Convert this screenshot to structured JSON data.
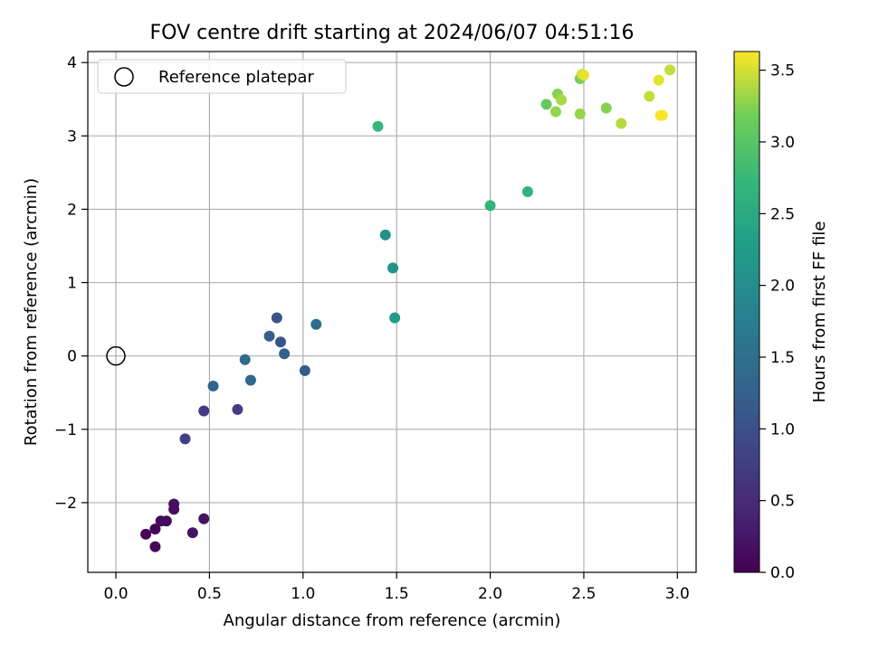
{
  "chart_data": {
    "type": "scatter",
    "title": "FOV centre drift starting at 2024/06/07 04:51:16",
    "xlabel": "Angular distance from reference (arcmin)",
    "ylabel": "Rotation from reference (arcmin)",
    "xlim": [
      -0.15,
      3.1
    ],
    "ylim": [
      -2.95,
      4.15
    ],
    "xticks": [
      0.0,
      0.5,
      1.0,
      1.5,
      2.0,
      2.5,
      3.0
    ],
    "xtick_labels": [
      "0.0",
      "0.5",
      "1.0",
      "1.5",
      "2.0",
      "2.5",
      "3.0"
    ],
    "yticks": [
      -2,
      -1,
      0,
      1,
      2,
      3,
      4
    ],
    "ytick_labels": [
      "−2",
      "−1",
      "0",
      "1",
      "2",
      "3",
      "4"
    ],
    "grid": true,
    "legend": {
      "placement": "upper-left",
      "entries": [
        "Reference platepar"
      ]
    },
    "reference_point": {
      "x": 0.0,
      "y": 0.0,
      "marker": "open-circle",
      "color": "#000000"
    },
    "colorbar": {
      "label": "Hours from first FF file",
      "colormap": "viridis",
      "range": [
        0.0,
        3.63
      ],
      "ticks": [
        0.0,
        0.5,
        1.0,
        1.5,
        2.0,
        2.5,
        3.0,
        3.5
      ],
      "tick_labels": [
        "0.0",
        "0.5",
        "1.0",
        "1.5",
        "2.0",
        "2.5",
        "3.0",
        "3.5"
      ]
    },
    "points": [
      {
        "x": 0.16,
        "y": -2.43,
        "t": 0.02
      },
      {
        "x": 0.21,
        "y": -2.36,
        "t": 0.05
      },
      {
        "x": 0.21,
        "y": -2.6,
        "t": 0.08
      },
      {
        "x": 0.24,
        "y": -2.25,
        "t": 0.1
      },
      {
        "x": 0.27,
        "y": -2.25,
        "t": 0.12
      },
      {
        "x": 0.31,
        "y": -2.02,
        "t": 0.15
      },
      {
        "x": 0.31,
        "y": -2.09,
        "t": 0.17
      },
      {
        "x": 0.41,
        "y": -2.41,
        "t": 0.2
      },
      {
        "x": 0.47,
        "y": -2.22,
        "t": 0.22
      },
      {
        "x": 0.47,
        "y": -0.75,
        "t": 0.7
      },
      {
        "x": 0.37,
        "y": -1.13,
        "t": 0.8
      },
      {
        "x": 0.65,
        "y": -0.73,
        "t": 0.75
      },
      {
        "x": 0.52,
        "y": -0.41,
        "t": 1.3
      },
      {
        "x": 0.72,
        "y": -0.33,
        "t": 1.35
      },
      {
        "x": 0.69,
        "y": -0.05,
        "t": 1.4
      },
      {
        "x": 0.82,
        "y": 0.27,
        "t": 1.2
      },
      {
        "x": 0.86,
        "y": 0.52,
        "t": 1.05
      },
      {
        "x": 0.88,
        "y": 0.19,
        "t": 1.1
      },
      {
        "x": 0.9,
        "y": 0.03,
        "t": 1.25
      },
      {
        "x": 1.01,
        "y": -0.2,
        "t": 1.15
      },
      {
        "x": 1.07,
        "y": 0.43,
        "t": 1.45
      },
      {
        "x": 1.44,
        "y": 1.65,
        "t": 2.05
      },
      {
        "x": 1.48,
        "y": 1.2,
        "t": 2.1
      },
      {
        "x": 1.49,
        "y": 0.52,
        "t": 2.2
      },
      {
        "x": 1.4,
        "y": 3.13,
        "t": 2.7
      },
      {
        "x": 2.0,
        "y": 2.05,
        "t": 2.65
      },
      {
        "x": 2.2,
        "y": 2.24,
        "t": 2.65
      },
      {
        "x": 2.3,
        "y": 3.43,
        "t": 3.1
      },
      {
        "x": 2.35,
        "y": 3.33,
        "t": 3.3
      },
      {
        "x": 2.36,
        "y": 3.57,
        "t": 3.25
      },
      {
        "x": 2.38,
        "y": 3.49,
        "t": 3.35
      },
      {
        "x": 2.48,
        "y": 3.3,
        "t": 3.3
      },
      {
        "x": 2.48,
        "y": 3.78,
        "t": 3.2
      },
      {
        "x": 2.49,
        "y": 3.84,
        "t": 3.5
      },
      {
        "x": 2.5,
        "y": 3.83,
        "t": 3.55
      },
      {
        "x": 2.62,
        "y": 3.38,
        "t": 3.25
      },
      {
        "x": 2.7,
        "y": 3.17,
        "t": 3.4
      },
      {
        "x": 2.85,
        "y": 3.54,
        "t": 3.45
      },
      {
        "x": 2.9,
        "y": 3.76,
        "t": 3.55
      },
      {
        "x": 2.91,
        "y": 3.28,
        "t": 3.6
      },
      {
        "x": 2.92,
        "y": 3.28,
        "t": 3.62
      },
      {
        "x": 2.96,
        "y": 3.9,
        "t": 3.45
      }
    ]
  }
}
